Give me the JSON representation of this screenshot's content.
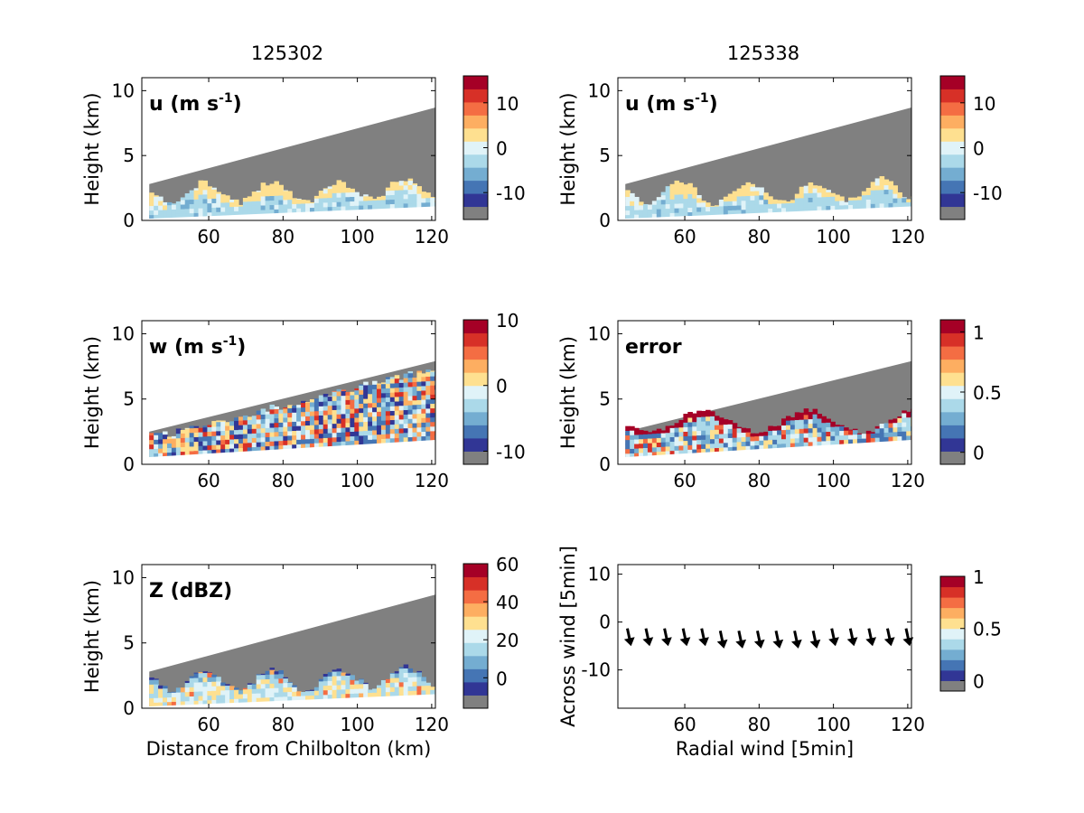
{
  "column_titles": [
    "125302",
    "125338"
  ],
  "colors": {
    "palette": [
      "#313695",
      "#4575b4",
      "#74add1",
      "#abd9e9",
      "#e0f3f8",
      "#fee090",
      "#fdae61",
      "#f46d43",
      "#d73027",
      "#a50026"
    ],
    "mask": "#808080",
    "background": "#ffffff"
  },
  "chart_data": [
    {
      "id": "u-125302",
      "type": "heatmap",
      "column": "125302",
      "label": "u (m s",
      "label_sup": "-1",
      "label_close": ")",
      "xlabel": "",
      "ylabel": "Height (km)",
      "xlim": [
        42,
        121
      ],
      "ylim": [
        0,
        11
      ],
      "xticks": [
        60,
        80,
        100,
        120
      ],
      "yticks": [
        0,
        5,
        10
      ],
      "colorbar": {
        "min": -16,
        "max": 16,
        "ticks": [
          10,
          0,
          -10
        ]
      }
    },
    {
      "id": "u-125338",
      "type": "heatmap",
      "column": "125338",
      "label": "u (m s",
      "label_sup": "-1",
      "label_close": ")",
      "xlabel": "",
      "ylabel": "Height (km)",
      "xlim": [
        42,
        121
      ],
      "ylim": [
        0,
        11
      ],
      "xticks": [
        60,
        80,
        100,
        120
      ],
      "yticks": [
        0,
        5,
        10
      ],
      "colorbar": {
        "min": -16,
        "max": 16,
        "ticks": [
          10,
          0,
          -10
        ]
      }
    },
    {
      "id": "w-125302",
      "type": "heatmap",
      "column": "125302",
      "label": "w (m s",
      "label_sup": "-1",
      "label_close": ")",
      "xlabel": "",
      "ylabel": "Height (km)",
      "xlim": [
        42,
        121
      ],
      "ylim": [
        0,
        11
      ],
      "xticks": [
        60,
        80,
        100,
        120
      ],
      "yticks": [
        0,
        5,
        10
      ],
      "colorbar": {
        "min": -12,
        "max": 10,
        "ticks": [
          10,
          0,
          -10
        ]
      }
    },
    {
      "id": "error-125338",
      "type": "heatmap",
      "column": "125338",
      "label": "error",
      "xlabel": "",
      "ylabel": "Height (km)",
      "xlim": [
        42,
        121
      ],
      "ylim": [
        0,
        11
      ],
      "xticks": [
        60,
        80,
        100,
        120
      ],
      "yticks": [
        0,
        5,
        10
      ],
      "colorbar": {
        "min": -0.1,
        "max": 1.1,
        "ticks": [
          1,
          0.5,
          0
        ]
      }
    },
    {
      "id": "z-125302",
      "type": "heatmap",
      "column": "125302",
      "label": "Z (dBZ)",
      "xlabel": "Distance from Chilbolton (km)",
      "ylabel": "Height (km)",
      "xlim": [
        42,
        121
      ],
      "ylim": [
        0,
        11
      ],
      "xticks": [
        60,
        80,
        100,
        120
      ],
      "yticks": [
        0,
        5,
        10
      ],
      "colorbar": {
        "min": -16,
        "max": 60,
        "ticks": [
          60,
          40,
          20,
          0
        ]
      }
    },
    {
      "id": "wind-arrows",
      "type": "scatter",
      "column": "125338",
      "xlabel": "Radial wind [5min]",
      "ylabel": "Across wind [5min]",
      "xlim": [
        42,
        121
      ],
      "ylim": [
        -18,
        12
      ],
      "xticks": [
        60,
        80,
        100,
        120
      ],
      "yticks": [
        10,
        0,
        -10
      ],
      "x": [
        45,
        50,
        55,
        60,
        65,
        70,
        75,
        80,
        85,
        90,
        95,
        100,
        105,
        110,
        115,
        120
      ],
      "y": [
        -3,
        -3,
        -3,
        -3,
        -3,
        -3.5,
        -3.5,
        -3.5,
        -3.5,
        -3.5,
        -3.5,
        -3,
        -3,
        -3,
        -3,
        -3
      ],
      "colorbar": {
        "min": -0.1,
        "max": 1,
        "ticks": [
          1,
          0.5,
          0
        ]
      }
    }
  ]
}
